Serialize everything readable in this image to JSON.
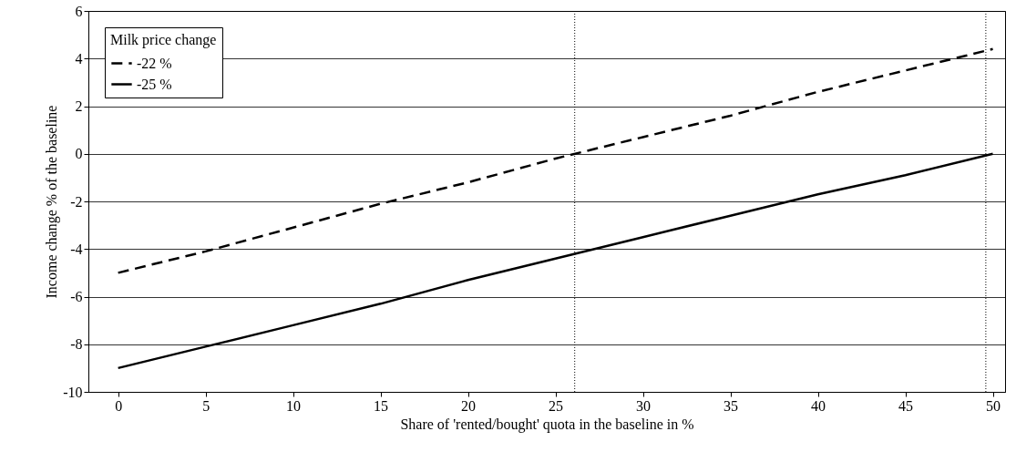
{
  "chart_data": {
    "type": "line",
    "xlabel": "Share of 'rented/bought' quota in the baseline in %",
    "ylabel": "Income change % of the baseline",
    "legend_title": "Milk price change",
    "x": [
      0,
      5,
      10,
      15,
      20,
      25,
      30,
      35,
      40,
      45,
      50
    ],
    "series": [
      {
        "name": "-22 %",
        "color": "#000000",
        "line_style": "dashed",
        "values": [
          -5,
          -4.1,
          -3.1,
          -2.1,
          -1.2,
          -0.2,
          0.7,
          1.6,
          2.6,
          3.5,
          4.4
        ]
      },
      {
        "name": "-25 %",
        "color": "#000000",
        "line_style": "solid",
        "values": [
          -9,
          -8.1,
          -7.2,
          -6.3,
          -5.3,
          -4.4,
          -3.5,
          -2.6,
          -1.7,
          -0.9,
          0
        ]
      }
    ],
    "xlim": [
      -1.7,
      50.7
    ],
    "xticks": [
      0,
      5,
      10,
      15,
      20,
      25,
      30,
      35,
      40,
      45,
      50
    ],
    "ylim": [
      -10,
      6
    ],
    "yticks": [
      -10,
      -8,
      -6,
      -4,
      -2,
      0,
      2,
      4,
      6
    ],
    "ref_lines": [
      {
        "axis": "x",
        "value": 26.1,
        "line_style": "dotted"
      },
      {
        "axis": "x",
        "value": 49.6,
        "line_style": "dotted"
      }
    ],
    "grid": "y",
    "legend": "top left",
    "marker": "none"
  }
}
